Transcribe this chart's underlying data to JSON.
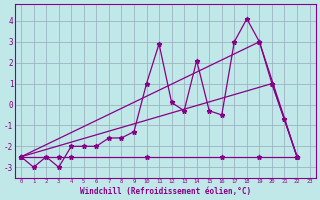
{
  "xlabel": "Windchill (Refroidissement éolien,°C)",
  "xlim": [
    -0.5,
    23.5
  ],
  "ylim": [
    -3.5,
    4.8
  ],
  "yticks": [
    -3,
    -2,
    -1,
    0,
    1,
    2,
    3,
    4
  ],
  "xticks": [
    0,
    1,
    2,
    3,
    4,
    5,
    6,
    7,
    8,
    9,
    10,
    11,
    12,
    13,
    14,
    15,
    16,
    17,
    18,
    19,
    20,
    21,
    22,
    23
  ],
  "bg_color": "#c0e8e8",
  "line_color": "#880088",
  "grid_color": "#99aabb",
  "line1_x": [
    0,
    1,
    2,
    3,
    4,
    5,
    6,
    7,
    8,
    9,
    10,
    11,
    12,
    13,
    14,
    15,
    16,
    17,
    18,
    19,
    20,
    21,
    22
  ],
  "line1_y": [
    -2.5,
    -3.0,
    -2.5,
    -3.0,
    -2.0,
    -2.0,
    -2.0,
    -1.6,
    -1.6,
    -1.3,
    1.0,
    2.9,
    0.1,
    -0.3,
    2.1,
    -0.3,
    -0.5,
    3.0,
    4.1,
    3.0,
    1.0,
    -0.7,
    -2.5
  ],
  "line2_x": [
    0,
    3,
    4,
    10,
    16,
    19,
    22
  ],
  "line2_y": [
    -2.5,
    -2.5,
    -2.5,
    -2.5,
    -2.5,
    -2.5,
    -2.5
  ],
  "line3_x": [
    0,
    19,
    22
  ],
  "line3_y": [
    -2.5,
    3.0,
    -2.5
  ],
  "line4_x": [
    0,
    20,
    22
  ],
  "line4_y": [
    -2.5,
    1.0,
    -2.5
  ]
}
